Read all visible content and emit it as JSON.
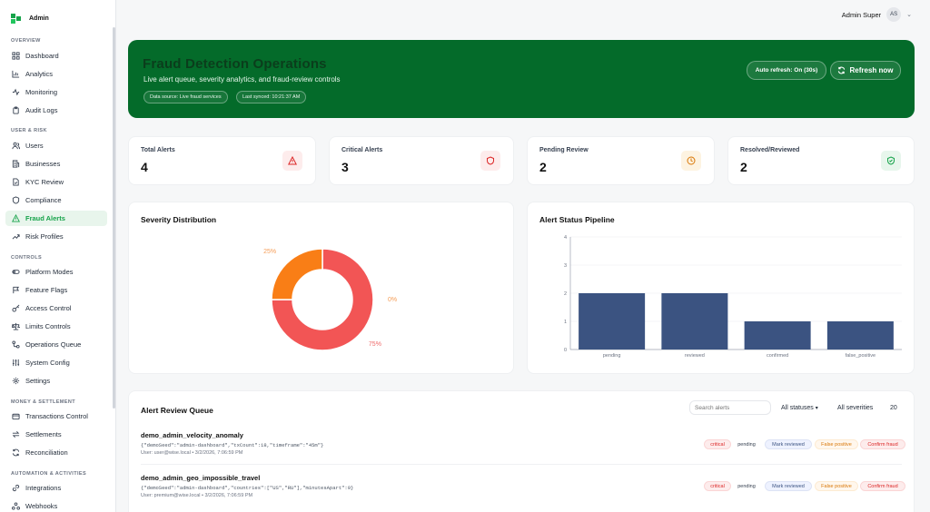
{
  "brand": {
    "name": "Admin"
  },
  "sidebar": {
    "sections": [
      {
        "label": "OVERVIEW",
        "items": [
          "Dashboard",
          "Analytics",
          "Monitoring",
          "Audit Logs"
        ]
      },
      {
        "label": "USER & RISK",
        "items": [
          "Users",
          "Businesses",
          "KYC Review",
          "Compliance",
          "Fraud Alerts",
          "Risk Profiles"
        ]
      },
      {
        "label": "CONTROLS",
        "items": [
          "Platform Modes",
          "Feature Flags",
          "Access Control",
          "Limits Controls",
          "Operations Queue",
          "System Config",
          "Settings"
        ]
      },
      {
        "label": "MONEY & SETTLEMENT",
        "items": [
          "Transactions Control",
          "Settlements",
          "Reconciliation"
        ]
      },
      {
        "label": "AUTOMATION & ACTIVITIES",
        "items": [
          "Integrations",
          "Webhooks"
        ]
      }
    ],
    "active_item": "Fraud Alerts"
  },
  "topbar": {
    "user_name": "Admin Super",
    "avatar_initials": "AS"
  },
  "hero": {
    "title": "Fraud Detection Operations",
    "subtitle": "Live alert queue, severity analytics, and fraud-review controls",
    "pill_source": "Data source: Live fraud services",
    "pill_synced": "Last synced: 10:21:37 AM",
    "auto_refresh": "Auto refresh: On (30s)",
    "refresh_button": "Refresh now",
    "bg_color": "#046b2a"
  },
  "stats": [
    {
      "label": "Total Alerts",
      "value": "4",
      "icon": "warning-triangle-icon",
      "color": "#dc2626",
      "bg": "#fdecec"
    },
    {
      "label": "Critical Alerts",
      "value": "3",
      "icon": "shield-icon",
      "color": "#dc2626",
      "bg": "#fdecec"
    },
    {
      "label": "Pending Review",
      "value": "2",
      "icon": "clock-icon",
      "color": "#d97706",
      "bg": "#fdf3e1"
    },
    {
      "label": "Resolved/Reviewed",
      "value": "2",
      "icon": "shield-check-icon",
      "color": "#16a34a",
      "bg": "#e7f6ec"
    }
  ],
  "severity": {
    "title": "Severity Distribution",
    "chart_data": {
      "type": "pie",
      "categories": [
        "critical",
        "high",
        "other"
      ],
      "values": [
        75,
        25,
        0
      ],
      "labels": [
        "75%",
        "25%",
        "0%"
      ],
      "colors": [
        "#f25555",
        "#f97e16",
        "#e5e7eb"
      ],
      "label_colors": [
        "#ef6b6b",
        "#f59e58",
        "#f59e58"
      ]
    }
  },
  "pipeline": {
    "title": "Alert Status Pipeline",
    "chart_data": {
      "type": "bar",
      "categories": [
        "pending",
        "reviewed",
        "confirmed",
        "false_positive"
      ],
      "values": [
        2,
        2,
        1,
        1
      ],
      "ylim": [
        0,
        4
      ],
      "yticks": [
        "0",
        "1",
        "2",
        "3",
        "4"
      ],
      "bar_color": "#3b5381"
    }
  },
  "queue": {
    "title": "Alert Review Queue",
    "search_placeholder": "Search alerts",
    "status_filter": "All statuses",
    "severity_filter": "All severities",
    "page_size": "20",
    "rows": [
      {
        "name": "demo_admin_velocity_anomaly",
        "meta": "{\"demoSeed\":\"admin-dashboard\",\"txCount\":18,\"timeframe\":\"45m\"}",
        "user": "User: user@wise.local • 3/2/2026, 7:06:59 PM",
        "severity": "critical",
        "status": "pending",
        "actions": [
          "Mark reviewed",
          "False positive",
          "Confirm fraud"
        ]
      },
      {
        "name": "demo_admin_geo_impossible_travel",
        "meta": "{\"demoSeed\":\"admin-dashboard\",\"countries\":[\"US\",\"RU\"],\"minutesApart\":9}",
        "user": "User: premium@wise.local • 3/2/2026, 7:06:59 PM",
        "severity": "critical",
        "status": "pending",
        "actions": [
          "Mark reviewed",
          "False positive",
          "Confirm fraud"
        ]
      }
    ]
  }
}
